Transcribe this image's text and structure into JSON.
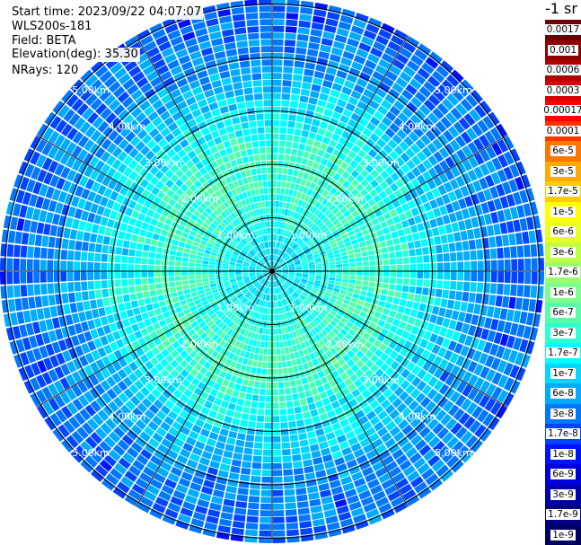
{
  "header": {
    "start_time": "Start time: 2023/09/22 04:07:07",
    "instrument": "WLS200s-181",
    "field": "Field: BETA",
    "elevation": "Elevation(deg): 35.30",
    "nrays": "NRays: 120"
  },
  "chart_data": {
    "type": "heatmap",
    "projection": "polar-ppi",
    "field": "BETA",
    "n_rays": 120,
    "max_range_km": 6,
    "range_rings_km": [
      1,
      2,
      3,
      4,
      5
    ],
    "range_labels": [
      "1.00km",
      "2.00km",
      "3.00km",
      "4.00km",
      "5.00km"
    ],
    "spoke_step_deg": 30,
    "approx_beta_by_range": [
      {
        "range_km": 0.5,
        "beta": "1e-7"
      },
      {
        "range_km": 1.0,
        "beta": "1.7e-7"
      },
      {
        "range_km": 2.0,
        "beta": "3e-7"
      },
      {
        "range_km": 3.0,
        "beta": "1e-7"
      },
      {
        "range_km": 4.0,
        "beta": "3e-8"
      },
      {
        "range_km": 5.0,
        "beta": "1.7e-8"
      }
    ],
    "colorbar": {
      "unit": "-1 sr",
      "ticks": [
        "0.0017",
        "0.001",
        "0.0006",
        "0.0003",
        "0.00017",
        "0.0001",
        "6e-5",
        "3e-5",
        "1.7e-5",
        "1e-5",
        "6e-6",
        "3e-6",
        "1.7e-6",
        "1e-6",
        "6e-7",
        "3e-7",
        "1.7e-7",
        "1e-7",
        "6e-8",
        "3e-8",
        "1.7e-8",
        "1e-8",
        "6e-9",
        "3e-9",
        "1.7e-9",
        "1e-9"
      ],
      "colors": [
        "#6a0000",
        "#8e0000",
        "#b00000",
        "#d40000",
        "#ff0000",
        "#ff3300",
        "#ff7700",
        "#ffaa00",
        "#ffcc00",
        "#ffff00",
        "#e8ff20",
        "#c0ff40",
        "#9aff70",
        "#7dff8c",
        "#55ffaa",
        "#2cffd4",
        "#00ffff",
        "#00d6ff",
        "#00aaff",
        "#0077ff",
        "#0044ff",
        "#0011ff",
        "#0000dd",
        "#0000aa",
        "#000080",
        "#000060"
      ]
    }
  }
}
